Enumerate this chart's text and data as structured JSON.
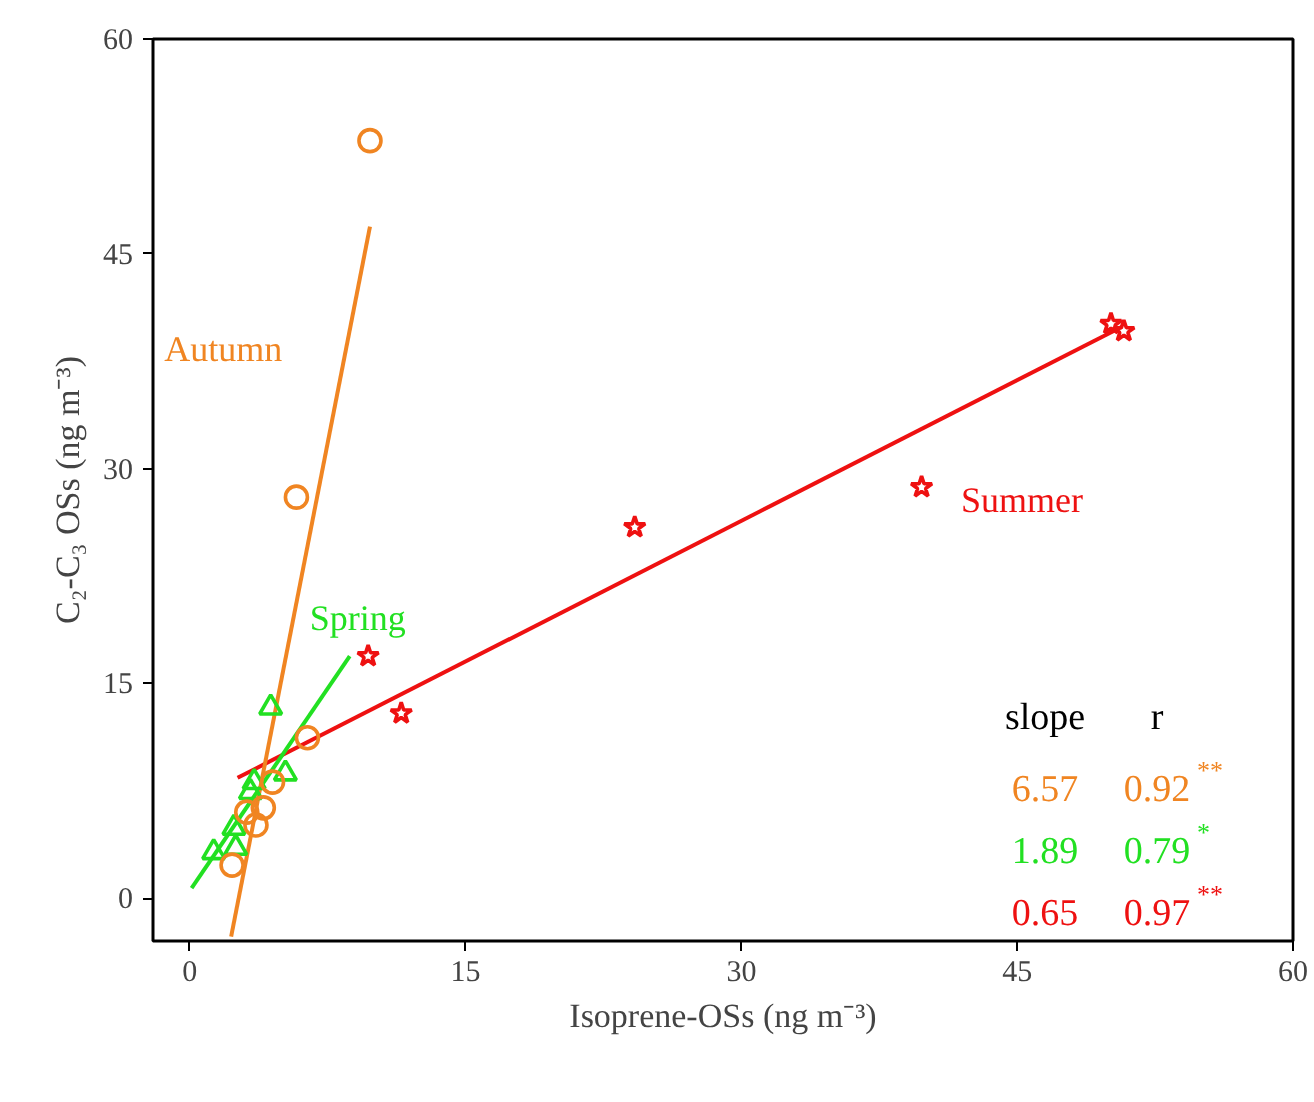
{
  "chart_data": {
    "type": "scatter",
    "xlabel": "Isoprene-OSs (ng m⁻³)",
    "ylabel": "C₂-C₃ OSs (ng m⁻³)",
    "xlim": [
      -2,
      60
    ],
    "ylim": [
      -3,
      60
    ],
    "xticks": [
      0,
      15,
      30,
      45,
      60
    ],
    "yticks": [
      0,
      15,
      30,
      45,
      60
    ],
    "grid": false,
    "series": [
      {
        "name": "Autumn",
        "color": "#f08522",
        "marker": "circle",
        "x": [
          9.8,
          5.8,
          6.4,
          4.0,
          3.6,
          3.1,
          2.3,
          4.5
        ],
        "values": [
          52.9,
          28.0,
          11.2,
          6.3,
          5.1,
          6.0,
          2.3,
          8.1
        ]
      },
      {
        "name": "Spring",
        "color": "#22e022",
        "marker": "triangle",
        "x": [
          4.4,
          5.2,
          3.5,
          2.4,
          1.3,
          2.5,
          3.3
        ],
        "values": [
          13.3,
          8.7,
          8.1,
          4.9,
          3.2,
          3.5,
          7.4
        ]
      },
      {
        "name": "Summer",
        "color": "#ee1111",
        "marker": "star",
        "x": [
          9.7,
          11.5,
          24.2,
          39.8,
          50.1,
          50.8
        ],
        "values": [
          16.9,
          12.9,
          25.9,
          28.7,
          40.1,
          39.6
        ]
      },
      {
        "type": "line",
        "color": "#f08522",
        "x": [
          2.25,
          9.8
        ],
        "values": [
          -2.7,
          46.9
        ]
      },
      {
        "type": "line",
        "color": "#22e022",
        "x": [
          0.1,
          8.7
        ],
        "values": [
          0.7,
          16.9
        ]
      },
      {
        "type": "line",
        "color": "#ee1111",
        "x": [
          2.6,
          50.7
        ],
        "values": [
          8.4,
          39.9
        ]
      }
    ],
    "annotations": [
      "slope",
      "r",
      "6.57",
      "0.92$^{**}$",
      "1.89",
      "0.79$^{*}$",
      "0.65",
      "0.97$^{**}$"
    ]
  }
}
